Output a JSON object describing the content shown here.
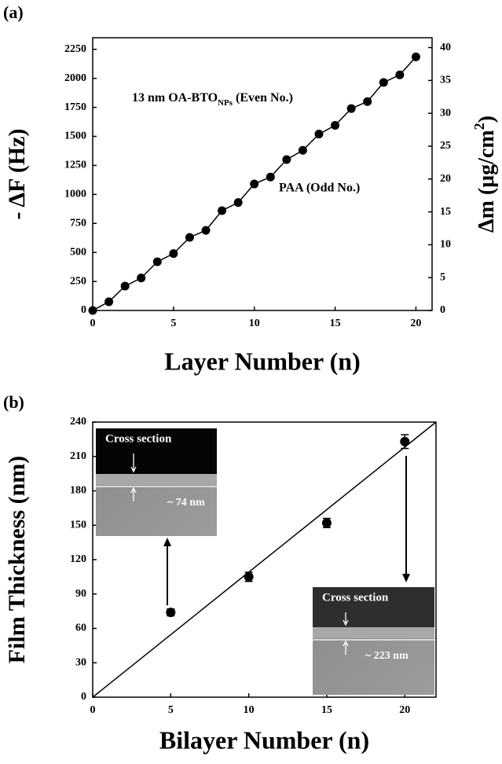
{
  "chart_data": [
    {
      "type": "line",
      "panel": "(a)",
      "xlabel": "Layer Number (n)",
      "ylabel": "- ΔF (Hz)",
      "y2label": {
        "text": "Δm (μg/cm",
        "sup": "2",
        "end": ")"
      },
      "x": [
        0,
        1,
        2,
        3,
        4,
        5,
        6,
        7,
        8,
        9,
        10,
        11,
        12,
        13,
        14,
        15,
        16,
        17,
        18,
        19,
        20
      ],
      "series": [
        {
          "color": "#000000",
          "values": [
            0,
            75,
            210,
            280,
            420,
            490,
            630,
            690,
            860,
            930,
            1090,
            1150,
            1300,
            1380,
            1520,
            1595,
            1740,
            1800,
            1965,
            2030,
            2185
          ]
        }
      ],
      "xlim": [
        0,
        21
      ],
      "xticks": [
        0,
        5,
        10,
        15,
        20
      ],
      "ylim": [
        0,
        2350
      ],
      "yticks": [
        0,
        250,
        500,
        750,
        1000,
        1250,
        1500,
        1750,
        2000,
        2250
      ],
      "y2lim": [
        0,
        41.5
      ],
      "y2ticks": [
        0,
        5,
        10,
        15,
        20,
        25,
        30,
        35,
        40
      ],
      "annotations": [
        {
          "text": "13 nm OA-BTO",
          "sub": "NPs",
          "end": " (Even No.)"
        },
        {
          "text": "PAA (Odd No.)"
        }
      ]
    },
    {
      "type": "scatter",
      "panel": "(b)",
      "xlabel": "Bilayer Number (n)",
      "ylabel": "Film Thickness (nm)",
      "x": [
        5,
        10,
        15,
        20
      ],
      "series": [
        {
          "color": "#000000",
          "values": [
            74,
            105,
            152,
            223
          ],
          "errors": [
            3,
            4,
            4,
            6
          ]
        }
      ],
      "fit_line": {
        "x": [
          0,
          22
        ],
        "y": [
          0,
          240
        ]
      },
      "xlim": [
        0,
        22
      ],
      "xticks": [
        0,
        5,
        10,
        15,
        20
      ],
      "ylim": [
        0,
        240
      ],
      "yticks": [
        0,
        30,
        60,
        90,
        120,
        150,
        180,
        210,
        240
      ],
      "insets": [
        {
          "title": "Cross section",
          "label": "~ 74 nm"
        },
        {
          "title": "Cross section",
          "label": "~ 223 nm"
        }
      ]
    }
  ]
}
